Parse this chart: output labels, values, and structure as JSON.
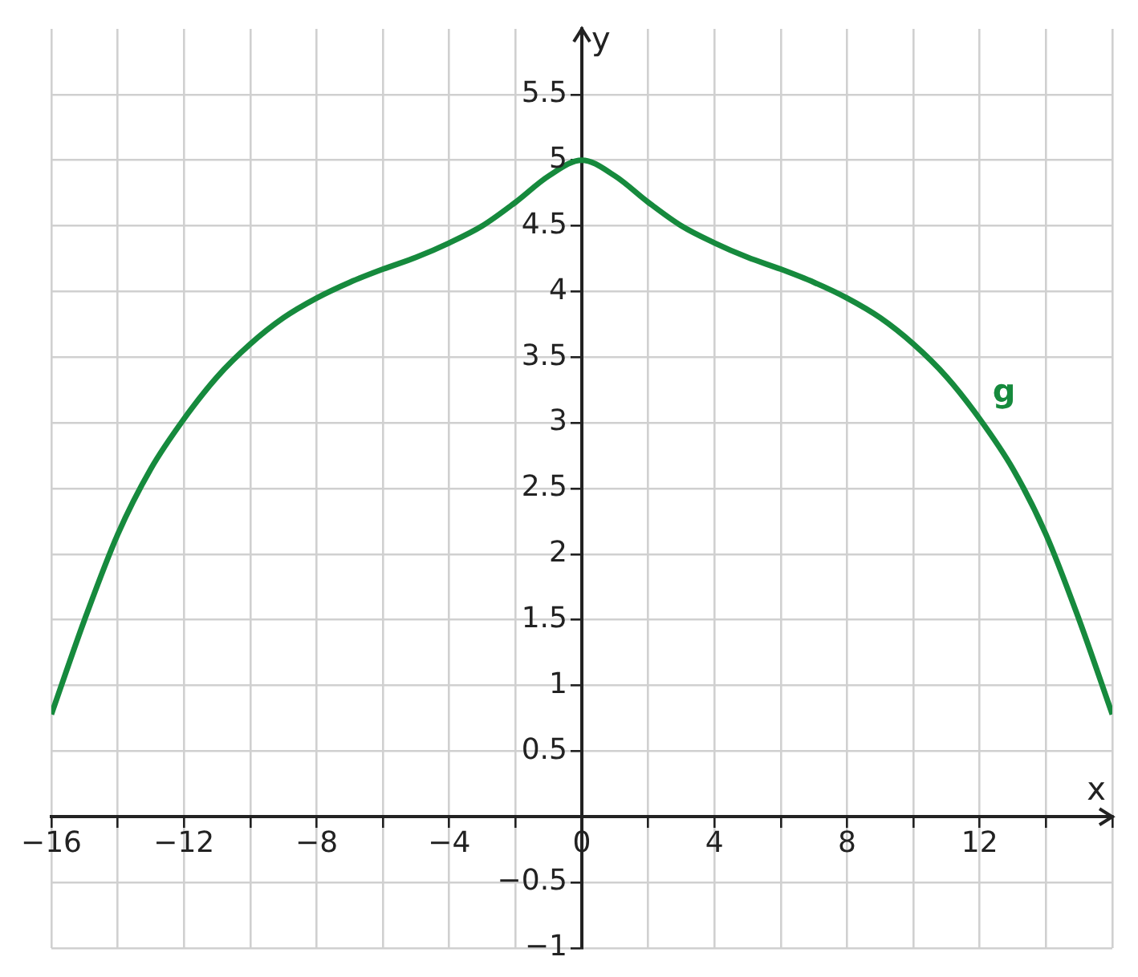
{
  "chart_data": {
    "type": "line",
    "xlabel": "x",
    "ylabel": "y",
    "xlim": [
      -16,
      16
    ],
    "ylim": [
      -1,
      6
    ],
    "xticks": [
      {
        "value": -16,
        "label": "−16"
      },
      {
        "value": -14,
        "label": null
      },
      {
        "value": -12,
        "label": "−12"
      },
      {
        "value": -10,
        "label": null
      },
      {
        "value": -8,
        "label": "−8"
      },
      {
        "value": -6,
        "label": null
      },
      {
        "value": -4,
        "label": "−4"
      },
      {
        "value": -2,
        "label": null
      },
      0,
      {
        "value": 2,
        "label": null
      },
      4,
      {
        "value": 6,
        "label": null
      },
      8,
      {
        "value": 10,
        "label": null
      },
      12,
      {
        "value": 14,
        "label": null
      },
      {
        "value": 16,
        "label": null
      }
    ],
    "yticks": [
      {
        "value": -1,
        "label": "−1"
      },
      {
        "value": -0.5,
        "label": "−0.5"
      },
      {
        "value": 0,
        "label": null
      },
      0.5,
      1,
      1.5,
      2,
      2.5,
      3,
      3.5,
      4,
      4.5,
      5,
      5.5
    ],
    "grid": true,
    "marker": "none",
    "line_style": "solid",
    "series": [
      {
        "name": "g",
        "color": "#168a3d",
        "x": [
          -16,
          -15,
          -14,
          -13,
          -12,
          -11,
          -10,
          -9,
          -8,
          -7,
          -6,
          -5,
          -4,
          -3,
          -2,
          -1,
          0,
          1,
          2,
          3,
          4,
          5,
          6,
          7,
          8,
          9,
          10,
          11,
          12,
          13,
          14,
          15,
          16
        ],
        "values": [
          0.78,
          1.5,
          2.15,
          2.65,
          3.03,
          3.35,
          3.6,
          3.8,
          3.95,
          4.07,
          4.17,
          4.26,
          4.37,
          4.5,
          4.68,
          4.88,
          5,
          4.88,
          4.68,
          4.5,
          4.37,
          4.26,
          4.17,
          4.07,
          3.95,
          3.8,
          3.6,
          3.35,
          3.03,
          2.65,
          2.15,
          1.5,
          0.78
        ]
      }
    ]
  }
}
